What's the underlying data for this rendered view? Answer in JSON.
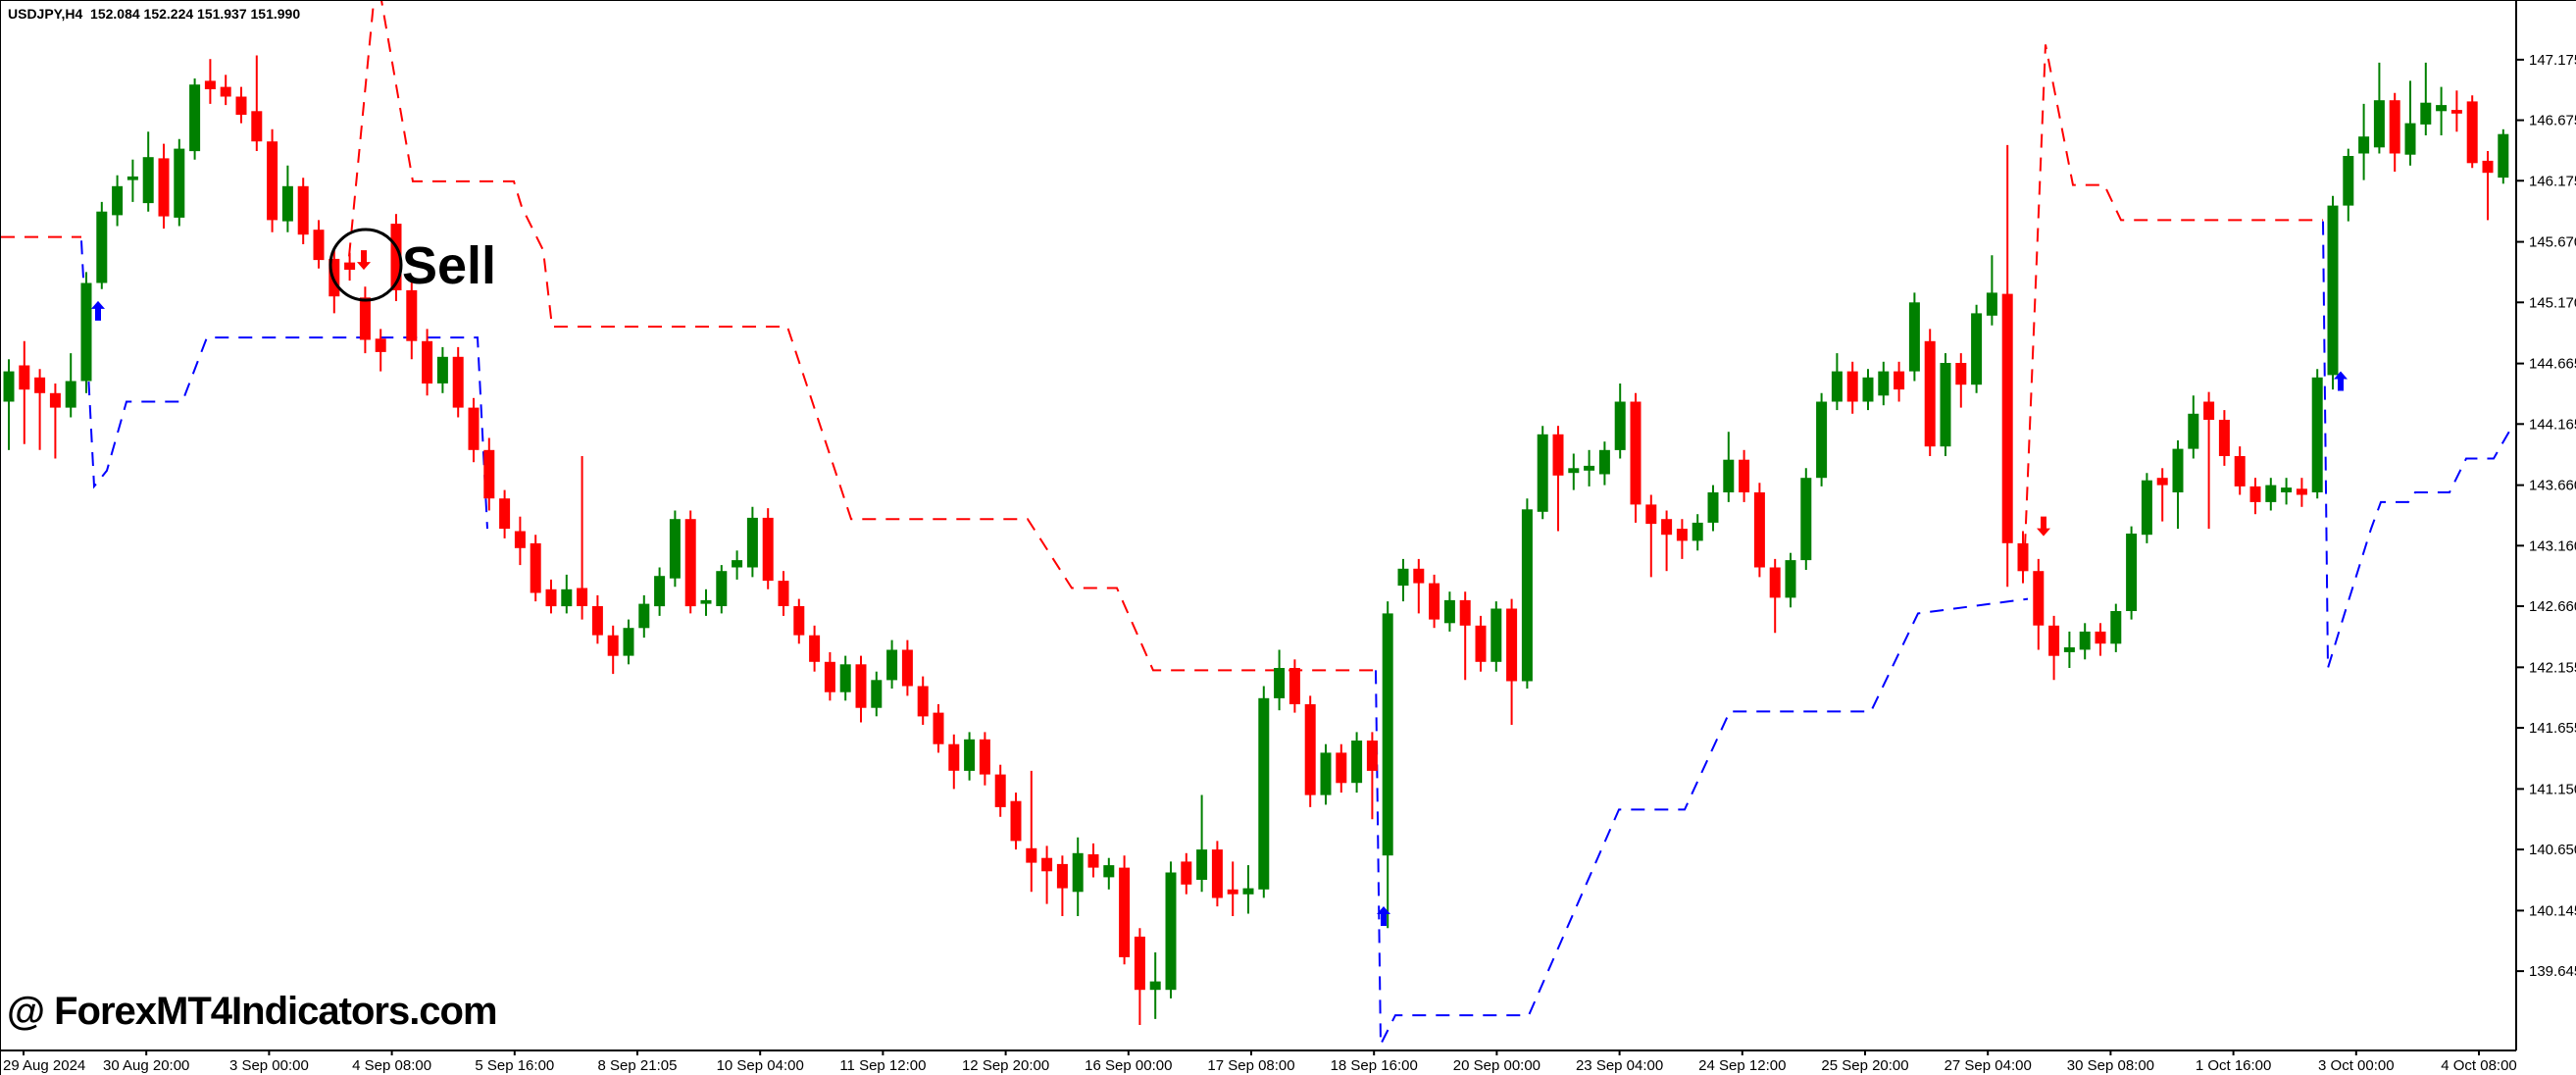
{
  "chart": {
    "title": "USDJPY,H4  152.084 152.224 151.937 151.990",
    "quote": {
      "symbol": "USDJPY",
      "timeframe": "H4",
      "open": "152.084",
      "high": "152.224",
      "low": "151.937",
      "close": "151.990"
    },
    "watermark": "@ ForexMT4Indicators.com",
    "annotation": {
      "label": "Sell"
    },
    "colors": {
      "bull": "#008000",
      "bear": "#ff0000",
      "resistance_line": "#ff0000",
      "support_line": "#0000ff",
      "buy_arrow": "#0000ff",
      "sell_arrow": "#ff0000",
      "axis": "#000000",
      "background": "#ffffff",
      "text": "#000000"
    }
  },
  "chart_data": {
    "type": "candlestick",
    "title": "USDJPY,H4",
    "ylabel": "price",
    "ylim": [
      139.03,
      147.66
    ],
    "grid": false,
    "price_axis_labels": [
      "147.175",
      "146.675",
      "146.175",
      "145.670",
      "145.170",
      "144.665",
      "144.165",
      "143.660",
      "143.160",
      "142.660",
      "142.155",
      "141.655",
      "141.150",
      "140.650",
      "140.145",
      "139.645"
    ],
    "time_axis_labels": [
      "29 Aug 2024",
      "30 Aug 20:00",
      "3 Sep 00:00",
      "4 Sep 08:00",
      "5 Sep 16:00",
      "8 Sep 21:05",
      "10 Sep 04:00",
      "11 Sep 12:00",
      "12 Sep 20:00",
      "16 Sep 00:00",
      "17 Sep 08:00",
      "18 Sep 16:00",
      "20 Sep 00:00",
      "23 Sep 04:00",
      "24 Sep 12:00",
      "25 Sep 20:00",
      "27 Sep 04:00",
      "30 Sep 08:00",
      "1 Oct 16:00",
      "3 Oct 00:00",
      "4 Oct 08:00"
    ],
    "candles_ohlc": [
      [
        144.35,
        144.7,
        143.95,
        144.6
      ],
      [
        144.65,
        144.85,
        144.0,
        144.45
      ],
      [
        144.55,
        144.62,
        143.95,
        144.42
      ],
      [
        144.42,
        144.5,
        143.88,
        144.3
      ],
      [
        144.3,
        144.75,
        144.22,
        144.52
      ],
      [
        144.52,
        145.42,
        144.42,
        145.33
      ],
      [
        145.33,
        146.0,
        145.28,
        145.92
      ],
      [
        145.89,
        146.22,
        145.8,
        146.13
      ],
      [
        146.18,
        146.35,
        146.0,
        146.21
      ],
      [
        145.99,
        146.58,
        145.92,
        146.37
      ],
      [
        146.36,
        146.48,
        145.78,
        145.88
      ],
      [
        145.87,
        146.52,
        145.8,
        146.44
      ],
      [
        146.42,
        147.02,
        146.35,
        146.97
      ],
      [
        147.0,
        147.18,
        146.81,
        146.93
      ],
      [
        146.95,
        147.05,
        146.8,
        146.87
      ],
      [
        146.87,
        146.95,
        146.65,
        146.72
      ],
      [
        146.75,
        147.21,
        146.42,
        146.5
      ],
      [
        146.5,
        146.6,
        145.75,
        145.85
      ],
      [
        145.84,
        146.3,
        145.75,
        146.13
      ],
      [
        146.13,
        146.2,
        145.65,
        145.73
      ],
      [
        145.77,
        145.85,
        145.45,
        145.52
      ],
      [
        145.53,
        145.6,
        145.08,
        145.22
      ],
      [
        145.5,
        145.58,
        145.35,
        145.44
      ],
      [
        145.21,
        145.3,
        144.75,
        144.86
      ],
      [
        144.87,
        144.95,
        144.6,
        144.76
      ],
      [
        145.82,
        145.9,
        145.18,
        145.27
      ],
      [
        145.27,
        145.35,
        144.7,
        144.85
      ],
      [
        144.85,
        144.95,
        144.4,
        144.5
      ],
      [
        144.5,
        144.8,
        144.42,
        144.72
      ],
      [
        144.72,
        144.8,
        144.22,
        144.3
      ],
      [
        144.3,
        144.38,
        143.85,
        143.95
      ],
      [
        143.95,
        144.05,
        143.45,
        143.55
      ],
      [
        143.55,
        143.62,
        143.22,
        143.3
      ],
      [
        143.28,
        143.4,
        143.0,
        143.14
      ],
      [
        143.18,
        143.25,
        142.7,
        142.77
      ],
      [
        142.8,
        142.88,
        142.6,
        142.66
      ],
      [
        142.66,
        142.92,
        142.6,
        142.8
      ],
      [
        142.81,
        143.9,
        142.55,
        142.66
      ],
      [
        142.66,
        142.75,
        142.35,
        142.42
      ],
      [
        142.42,
        142.5,
        142.1,
        142.25
      ],
      [
        142.25,
        142.55,
        142.18,
        142.48
      ],
      [
        142.48,
        142.75,
        142.4,
        142.68
      ],
      [
        142.66,
        142.98,
        142.58,
        142.91
      ],
      [
        142.89,
        143.45,
        142.82,
        143.38
      ],
      [
        143.38,
        143.45,
        142.6,
        142.66
      ],
      [
        142.68,
        142.8,
        142.58,
        142.71
      ],
      [
        142.66,
        143.0,
        142.6,
        142.95
      ],
      [
        142.98,
        143.12,
        142.88,
        143.04
      ],
      [
        142.98,
        143.48,
        142.9,
        143.39
      ],
      [
        143.39,
        143.47,
        142.8,
        142.87
      ],
      [
        142.87,
        142.95,
        142.58,
        142.66
      ],
      [
        142.66,
        142.72,
        142.35,
        142.42
      ],
      [
        142.42,
        142.5,
        142.12,
        142.2
      ],
      [
        142.2,
        142.28,
        141.88,
        141.95
      ],
      [
        141.95,
        142.25,
        141.88,
        142.18
      ],
      [
        142.18,
        142.25,
        141.7,
        141.82
      ],
      [
        141.82,
        142.12,
        141.75,
        142.05
      ],
      [
        142.05,
        142.38,
        141.98,
        142.3
      ],
      [
        142.3,
        142.38,
        141.92,
        142.0
      ],
      [
        142.0,
        142.08,
        141.68,
        141.75
      ],
      [
        141.78,
        141.85,
        141.45,
        141.52
      ],
      [
        141.52,
        141.6,
        141.15,
        141.3
      ],
      [
        141.3,
        141.62,
        141.22,
        141.56
      ],
      [
        141.56,
        141.62,
        141.18,
        141.27
      ],
      [
        141.27,
        141.35,
        140.92,
        141.0
      ],
      [
        141.05,
        141.12,
        140.65,
        140.72
      ],
      [
        140.66,
        141.3,
        140.3,
        140.54
      ],
      [
        140.58,
        140.68,
        140.2,
        140.47
      ],
      [
        140.53,
        140.6,
        140.1,
        140.33
      ],
      [
        140.3,
        140.75,
        140.1,
        140.62
      ],
      [
        140.61,
        140.7,
        140.42,
        140.5
      ],
      [
        140.42,
        140.58,
        140.32,
        140.52
      ],
      [
        140.5,
        140.6,
        139.7,
        139.76
      ],
      [
        139.93,
        140.0,
        139.2,
        139.49
      ],
      [
        139.49,
        139.8,
        139.25,
        139.56
      ],
      [
        139.49,
        140.55,
        139.42,
        140.46
      ],
      [
        140.55,
        140.62,
        140.28,
        140.36
      ],
      [
        140.4,
        141.1,
        140.3,
        140.65
      ],
      [
        140.65,
        140.72,
        140.18,
        140.25
      ],
      [
        140.32,
        140.55,
        140.1,
        140.28
      ],
      [
        140.28,
        140.52,
        140.12,
        140.33
      ],
      [
        140.32,
        142.0,
        140.25,
        141.9
      ],
      [
        141.9,
        142.3,
        141.8,
        142.15
      ],
      [
        142.15,
        142.22,
        141.78,
        141.85
      ],
      [
        141.85,
        141.92,
        141.0,
        141.1
      ],
      [
        141.1,
        141.52,
        141.02,
        141.45
      ],
      [
        141.45,
        141.52,
        141.12,
        141.2
      ],
      [
        141.2,
        141.62,
        141.12,
        141.55
      ],
      [
        141.55,
        141.62,
        140.9,
        141.3
      ],
      [
        140.6,
        142.7,
        140.0,
        142.6
      ],
      [
        142.83,
        143.05,
        142.7,
        142.97
      ],
      [
        142.97,
        143.05,
        142.6,
        142.85
      ],
      [
        142.85,
        142.92,
        142.48,
        142.55
      ],
      [
        142.52,
        142.78,
        142.45,
        142.71
      ],
      [
        142.71,
        142.78,
        142.05,
        142.5
      ],
      [
        142.5,
        142.58,
        142.12,
        142.2
      ],
      [
        142.2,
        142.7,
        142.12,
        142.64
      ],
      [
        142.64,
        142.72,
        141.68,
        142.04
      ],
      [
        142.04,
        143.55,
        141.98,
        143.46
      ],
      [
        143.44,
        144.15,
        143.38,
        144.08
      ],
      [
        144.08,
        144.15,
        143.28,
        143.74
      ],
      [
        143.76,
        143.92,
        143.62,
        143.8
      ],
      [
        143.78,
        143.95,
        143.65,
        143.82
      ],
      [
        143.75,
        144.02,
        143.66,
        143.95
      ],
      [
        143.95,
        144.5,
        143.88,
        144.35
      ],
      [
        144.35,
        144.42,
        143.35,
        143.5
      ],
      [
        143.5,
        143.58,
        142.9,
        143.34
      ],
      [
        143.38,
        143.45,
        142.95,
        143.25
      ],
      [
        143.3,
        143.38,
        143.05,
        143.2
      ],
      [
        143.2,
        143.42,
        143.12,
        143.35
      ],
      [
        143.35,
        143.66,
        143.28,
        143.6
      ],
      [
        143.6,
        144.1,
        143.52,
        143.87
      ],
      [
        143.87,
        143.95,
        143.52,
        143.6
      ],
      [
        143.6,
        143.68,
        142.9,
        142.98
      ],
      [
        142.98,
        143.05,
        142.44,
        142.73
      ],
      [
        142.73,
        143.1,
        142.65,
        143.04
      ],
      [
        143.04,
        143.8,
        142.96,
        143.72
      ],
      [
        143.72,
        144.42,
        143.65,
        144.35
      ],
      [
        144.35,
        144.75,
        144.28,
        144.6
      ],
      [
        144.6,
        144.68,
        144.25,
        144.35
      ],
      [
        144.35,
        144.62,
        144.28,
        144.55
      ],
      [
        144.4,
        144.68,
        144.32,
        144.6
      ],
      [
        144.6,
        144.68,
        144.35,
        144.45
      ],
      [
        144.6,
        145.25,
        144.52,
        145.17
      ],
      [
        144.85,
        144.95,
        143.9,
        143.98
      ],
      [
        143.98,
        144.75,
        143.9,
        144.67
      ],
      [
        144.67,
        144.75,
        144.3,
        144.49
      ],
      [
        144.49,
        145.15,
        144.42,
        145.08
      ],
      [
        145.06,
        145.56,
        144.98,
        145.25
      ],
      [
        145.24,
        146.47,
        142.82,
        143.18
      ],
      [
        143.18,
        143.28,
        142.85,
        142.95
      ],
      [
        142.95,
        143.05,
        142.3,
        142.5
      ],
      [
        142.5,
        142.58,
        142.05,
        142.25
      ],
      [
        142.28,
        142.45,
        142.15,
        142.32
      ],
      [
        142.3,
        142.52,
        142.22,
        142.45
      ],
      [
        142.45,
        142.52,
        142.25,
        142.35
      ],
      [
        142.35,
        142.68,
        142.28,
        142.62
      ],
      [
        142.62,
        143.32,
        142.55,
        143.26
      ],
      [
        143.25,
        143.76,
        143.18,
        143.7
      ],
      [
        143.72,
        143.8,
        143.36,
        143.66
      ],
      [
        143.6,
        144.03,
        143.3,
        143.96
      ],
      [
        143.96,
        144.4,
        143.88,
        144.25
      ],
      [
        144.35,
        144.43,
        143.3,
        144.2
      ],
      [
        144.2,
        144.28,
        143.82,
        143.9
      ],
      [
        143.9,
        143.98,
        143.58,
        143.65
      ],
      [
        143.65,
        143.72,
        143.42,
        143.52
      ],
      [
        143.52,
        143.72,
        143.45,
        143.66
      ],
      [
        143.6,
        143.72,
        143.5,
        143.64
      ],
      [
        143.63,
        143.72,
        143.48,
        143.58
      ],
      [
        143.6,
        144.62,
        143.55,
        144.55
      ],
      [
        144.57,
        146.05,
        144.45,
        145.97
      ],
      [
        145.97,
        146.44,
        145.84,
        146.38
      ],
      [
        146.4,
        146.81,
        146.18,
        146.54
      ],
      [
        146.45,
        147.15,
        146.4,
        146.84
      ],
      [
        146.84,
        146.9,
        146.25,
        146.4
      ],
      [
        146.39,
        147.0,
        146.3,
        146.65
      ],
      [
        146.64,
        147.15,
        146.55,
        146.82
      ],
      [
        146.75,
        146.95,
        146.55,
        146.8
      ],
      [
        146.76,
        146.92,
        146.58,
        146.73
      ],
      [
        146.83,
        146.88,
        146.28,
        146.32
      ],
      [
        146.34,
        146.42,
        145.85,
        146.24
      ],
      [
        146.2,
        146.6,
        146.15,
        146.56
      ]
    ],
    "indicator_lines": [
      {
        "name": "resistance-trail",
        "color": "#ff0000",
        "style": "dashed",
        "segments": [
          [
            [
              0,
              145.71
            ],
            [
              82,
              145.71
            ]
          ],
          [
            [
              355,
              145.55
            ],
            [
              383,
              147.9
            ],
            [
              420,
              146.17
            ],
            [
              523,
              146.17
            ],
            [
              531,
              145.96
            ],
            [
              553,
              145.6
            ],
            [
              562,
              144.97
            ],
            [
              802,
              144.97
            ],
            [
              867,
              143.38
            ],
            [
              1047,
              143.38
            ],
            [
              1092,
              142.81
            ],
            [
              1138,
              142.81
            ],
            [
              1175,
              142.13
            ],
            [
              1405,
              142.13
            ]
          ],
          [
            [
              2063,
              142.95
            ],
            [
              2085,
              147.3
            ],
            [
              2113,
              146.14
            ],
            [
              2145,
              146.14
            ],
            [
              2162,
              145.85
            ],
            [
              2368,
              145.85
            ]
          ]
        ]
      },
      {
        "name": "support-trail",
        "color": "#0000ff",
        "style": "dashed",
        "segments": [
          [
            [
              82,
              145.68
            ],
            [
              95,
              143.65
            ],
            [
              108,
              143.78
            ],
            [
              128,
              144.35
            ],
            [
              185,
              144.35
            ],
            [
              210,
              144.88
            ],
            [
              486,
              144.88
            ],
            [
              496,
              143.3
            ]
          ],
          [
            [
              1402,
              142.13
            ],
            [
              1407,
              139.04
            ],
            [
              1422,
              139.28
            ],
            [
              1558,
              139.28
            ],
            [
              1650,
              140.98
            ],
            [
              1717,
              140.98
            ],
            [
              1763,
              141.79
            ],
            [
              1907,
              141.79
            ],
            [
              1955,
              142.6
            ],
            [
              2067,
              142.72
            ]
          ],
          [
            [
              2368,
              145.84
            ],
            [
              2373,
              142.15
            ],
            [
              2390,
              142.6
            ],
            [
              2417,
              143.3
            ],
            [
              2427,
              143.52
            ],
            [
              2455,
              143.52
            ],
            [
              2462,
              143.6
            ],
            [
              2497,
              143.6
            ],
            [
              2514,
              143.88
            ],
            [
              2542,
              143.88
            ],
            [
              2562,
              144.16
            ]
          ]
        ]
      }
    ],
    "signals": [
      {
        "kind": "buy-arrow",
        "x": 99,
        "price": 145.1,
        "dir": "up",
        "color": "#0000ff"
      },
      {
        "kind": "sell-arrow",
        "x": 370,
        "price": 145.52,
        "dir": "down",
        "color": "#ff0000"
      },
      {
        "kind": "buy-arrow",
        "x": 1410,
        "price": 140.1,
        "dir": "up",
        "color": "#0000ff"
      },
      {
        "kind": "sell-arrow",
        "x": 2083,
        "price": 143.32,
        "dir": "down",
        "color": "#ff0000"
      },
      {
        "kind": "buy-arrow",
        "x": 2386,
        "price": 144.52,
        "dir": "up",
        "color": "#0000ff"
      }
    ],
    "sell_circle": {
      "cx": 372,
      "cy": 269,
      "r": 36
    }
  }
}
